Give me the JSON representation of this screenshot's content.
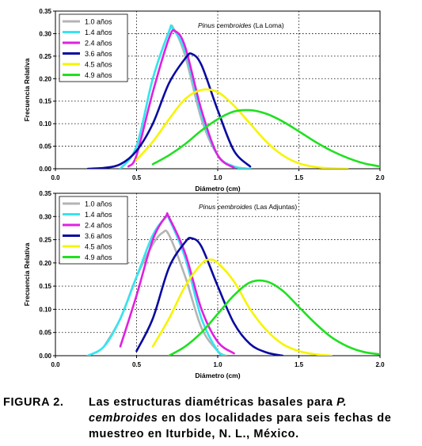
{
  "chart_data": [
    {
      "type": "line",
      "annotation": "Pinus cembroides (La Loma)",
      "annotation_italic": "Pinus cembroides",
      "annotation_plain": " (La Loma)",
      "xlabel": "Diámetro (cm)",
      "ylabel": "Frecuencia Relativa",
      "xlim": [
        0,
        2.0
      ],
      "ylim": [
        0,
        0.35
      ],
      "xticks": [
        "0.0",
        "0.5",
        "1.0",
        "1.5",
        "2.0"
      ],
      "yticks": [
        "0.00",
        "0.05",
        "0.10",
        "0.15",
        "0.20",
        "0.25",
        "0.30",
        "0.35"
      ],
      "grid": "dotted",
      "legend_position": "top-left",
      "series": [
        {
          "name": "1.0 años",
          "color": "#b4b4b4",
          "x": [
            0.4,
            0.5,
            0.6,
            0.7,
            0.73,
            0.8,
            0.9,
            1.0,
            1.1,
            1.2
          ],
          "y": [
            0.0,
            0.05,
            0.2,
            0.305,
            0.31,
            0.25,
            0.11,
            0.03,
            0.005,
            0.0
          ]
        },
        {
          "name": "1.4 años",
          "color": "#33e6f0",
          "x": [
            0.4,
            0.5,
            0.6,
            0.7,
            0.72,
            0.8,
            0.9,
            1.0,
            1.1,
            1.2
          ],
          "y": [
            0.0,
            0.05,
            0.2,
            0.305,
            0.312,
            0.26,
            0.12,
            0.03,
            0.005,
            0.0
          ]
        },
        {
          "name": "2.4 años",
          "color": "#e020e0",
          "x": [
            0.45,
            0.5,
            0.6,
            0.7,
            0.74,
            0.8,
            0.9,
            1.0,
            1.1
          ],
          "y": [
            0.005,
            0.03,
            0.17,
            0.29,
            0.305,
            0.27,
            0.13,
            0.03,
            0.002
          ]
        },
        {
          "name": "3.6 años",
          "color": "#0a0aa0",
          "x": [
            0.2,
            0.3,
            0.4,
            0.5,
            0.6,
            0.7,
            0.8,
            0.84,
            0.9,
            1.0,
            1.1,
            1.2
          ],
          "y": [
            0.0,
            0.002,
            0.01,
            0.04,
            0.1,
            0.19,
            0.245,
            0.255,
            0.23,
            0.13,
            0.04,
            0.005
          ]
        },
        {
          "name": "4.5 años",
          "color": "#f5f500",
          "x": [
            0.5,
            0.6,
            0.7,
            0.8,
            0.9,
            1.0,
            1.1,
            1.2,
            1.3,
            1.4,
            1.5,
            1.6,
            1.7,
            1.8
          ],
          "y": [
            0.02,
            0.06,
            0.11,
            0.155,
            0.175,
            0.17,
            0.14,
            0.1,
            0.06,
            0.03,
            0.012,
            0.004,
            0.001,
            0.0
          ]
        },
        {
          "name": "4.9 años",
          "color": "#20e020",
          "x": [
            0.6,
            0.7,
            0.8,
            0.9,
            1.0,
            1.1,
            1.2,
            1.3,
            1.4,
            1.5,
            1.6,
            1.7,
            1.8,
            1.9,
            2.0
          ],
          "y": [
            0.01,
            0.03,
            0.055,
            0.085,
            0.11,
            0.127,
            0.13,
            0.122,
            0.105,
            0.083,
            0.06,
            0.04,
            0.024,
            0.012,
            0.005
          ]
        }
      ]
    },
    {
      "type": "line",
      "annotation": "Pinus cembroides (Las Adjuntas)",
      "annotation_italic": "Pinus cembroides",
      "annotation_plain": " (Las Adjuntas)",
      "xlabel": "Diámetro (cm)",
      "ylabel": "Frecuencia Relativa",
      "xlim": [
        0,
        2.0
      ],
      "ylim": [
        0,
        0.35
      ],
      "xticks": [
        "0.0",
        "0.5",
        "1.0",
        "1.5",
        "2.0"
      ],
      "yticks": [
        "0.00",
        "0.05",
        "0.10",
        "0.15",
        "0.20",
        "0.25",
        "0.30",
        "0.35"
      ],
      "grid": "dotted",
      "legend_position": "top-left",
      "series": [
        {
          "name": "1.0 años",
          "color": "#b4b4b4",
          "x": [
            0.3,
            0.4,
            0.5,
            0.6,
            0.66,
            0.7,
            0.8,
            0.9,
            1.0,
            1.05
          ],
          "y": [
            0.02,
            0.08,
            0.17,
            0.24,
            0.265,
            0.26,
            0.17,
            0.06,
            0.01,
            0.0
          ]
        },
        {
          "name": "1.4 años",
          "color": "#33e6f0",
          "x": [
            0.2,
            0.3,
            0.4,
            0.5,
            0.6,
            0.68,
            0.7,
            0.8,
            0.9,
            1.0,
            1.05
          ],
          "y": [
            0.0,
            0.02,
            0.08,
            0.17,
            0.26,
            0.298,
            0.295,
            0.21,
            0.08,
            0.01,
            0.0
          ]
        },
        {
          "name": "2.4 años",
          "color": "#e020e0",
          "x": [
            0.4,
            0.5,
            0.6,
            0.68,
            0.7,
            0.8,
            0.9,
            1.0,
            1.1
          ],
          "y": [
            0.02,
            0.13,
            0.25,
            0.3,
            0.298,
            0.22,
            0.1,
            0.03,
            0.005
          ]
        },
        {
          "name": "3.6 años",
          "color": "#0a0aa0",
          "x": [
            0.5,
            0.6,
            0.7,
            0.8,
            0.84,
            0.9,
            1.0,
            1.1,
            1.2,
            1.3,
            1.4
          ],
          "y": [
            0.01,
            0.08,
            0.19,
            0.245,
            0.253,
            0.235,
            0.15,
            0.07,
            0.025,
            0.007,
            0.0
          ]
        },
        {
          "name": "4.5 años",
          "color": "#f5f500",
          "x": [
            0.6,
            0.7,
            0.8,
            0.9,
            0.95,
            1.0,
            1.1,
            1.2,
            1.3,
            1.4,
            1.5,
            1.6,
            1.7
          ],
          "y": [
            0.02,
            0.08,
            0.15,
            0.198,
            0.207,
            0.2,
            0.16,
            0.1,
            0.055,
            0.025,
            0.01,
            0.003,
            0.0
          ]
        },
        {
          "name": "4.9 años",
          "color": "#20e020",
          "x": [
            0.7,
            0.8,
            0.9,
            1.0,
            1.1,
            1.2,
            1.3,
            1.4,
            1.5,
            1.6,
            1.7,
            1.8,
            1.9,
            2.0
          ],
          "y": [
            0.0,
            0.02,
            0.05,
            0.09,
            0.13,
            0.158,
            0.16,
            0.14,
            0.105,
            0.07,
            0.04,
            0.02,
            0.008,
            0.003
          ]
        }
      ]
    }
  ],
  "caption": {
    "label": "FIGURA 2.",
    "text_1": "Las estructuras diamétricas basales para ",
    "text_italic": "P. cembroides",
    "text_2": " en dos localidades para seis fechas de muestreo en Iturbide, N. L., México."
  }
}
